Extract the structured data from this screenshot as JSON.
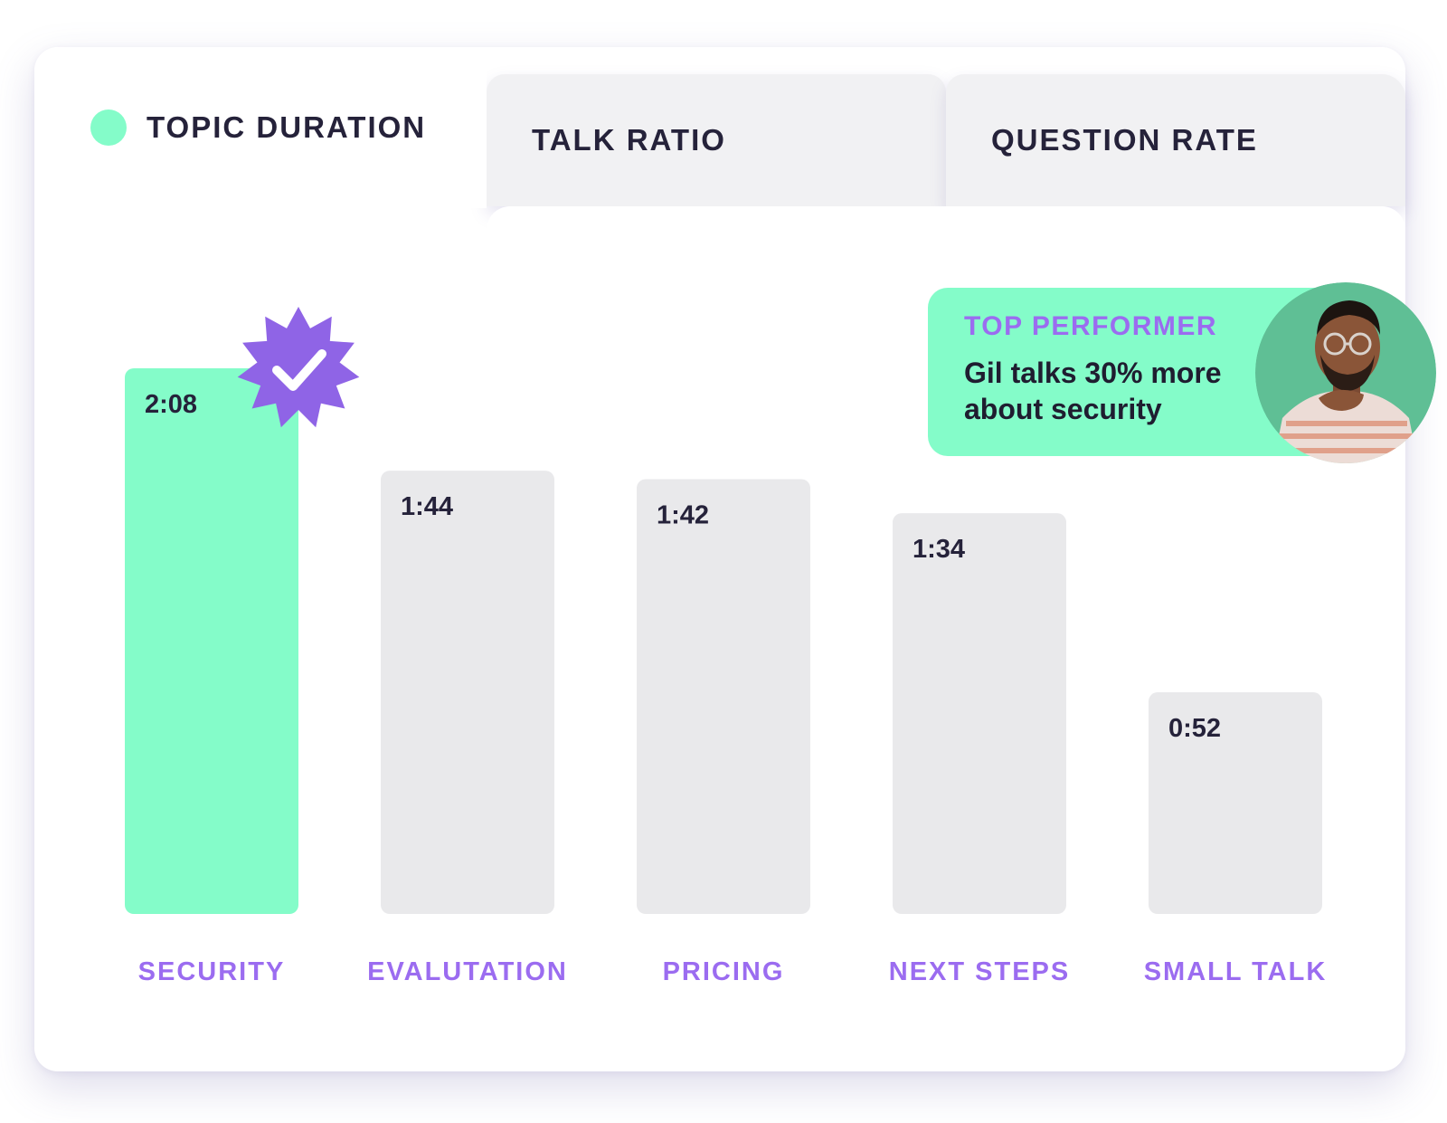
{
  "tabs": [
    {
      "label": "TOPIC DURATION",
      "active": true
    },
    {
      "label": "TALK RATIO",
      "active": false
    },
    {
      "label": "QUESTION RATE",
      "active": false
    }
  ],
  "callout": {
    "heading": "TOP PERFORMER",
    "text": "Gil talks 30% more about security"
  },
  "colors": {
    "accent": "#84fcc9",
    "bar_default": "#e9e9eb",
    "label": "#9b6cf0",
    "badge": "#8f64e6",
    "text_dark": "#25223a",
    "callout_bg": "#84fcc9"
  },
  "icons": {
    "badge": "verified-check-badge-icon",
    "tab_dot": "active-dot-icon"
  },
  "chart_data": {
    "type": "bar",
    "categories": [
      "SECURITY",
      "EVALUTATION",
      "PRICING",
      "NEXT STEPS",
      "SMALL TALK"
    ],
    "values": [
      128,
      104,
      102,
      94,
      52
    ],
    "value_labels": [
      "2:08",
      "1:44",
      "1:42",
      "1:34",
      "0:52"
    ],
    "unit": "seconds",
    "highlight_index": 0,
    "ylim": [
      0,
      128
    ],
    "grid": false,
    "legend": "none"
  }
}
